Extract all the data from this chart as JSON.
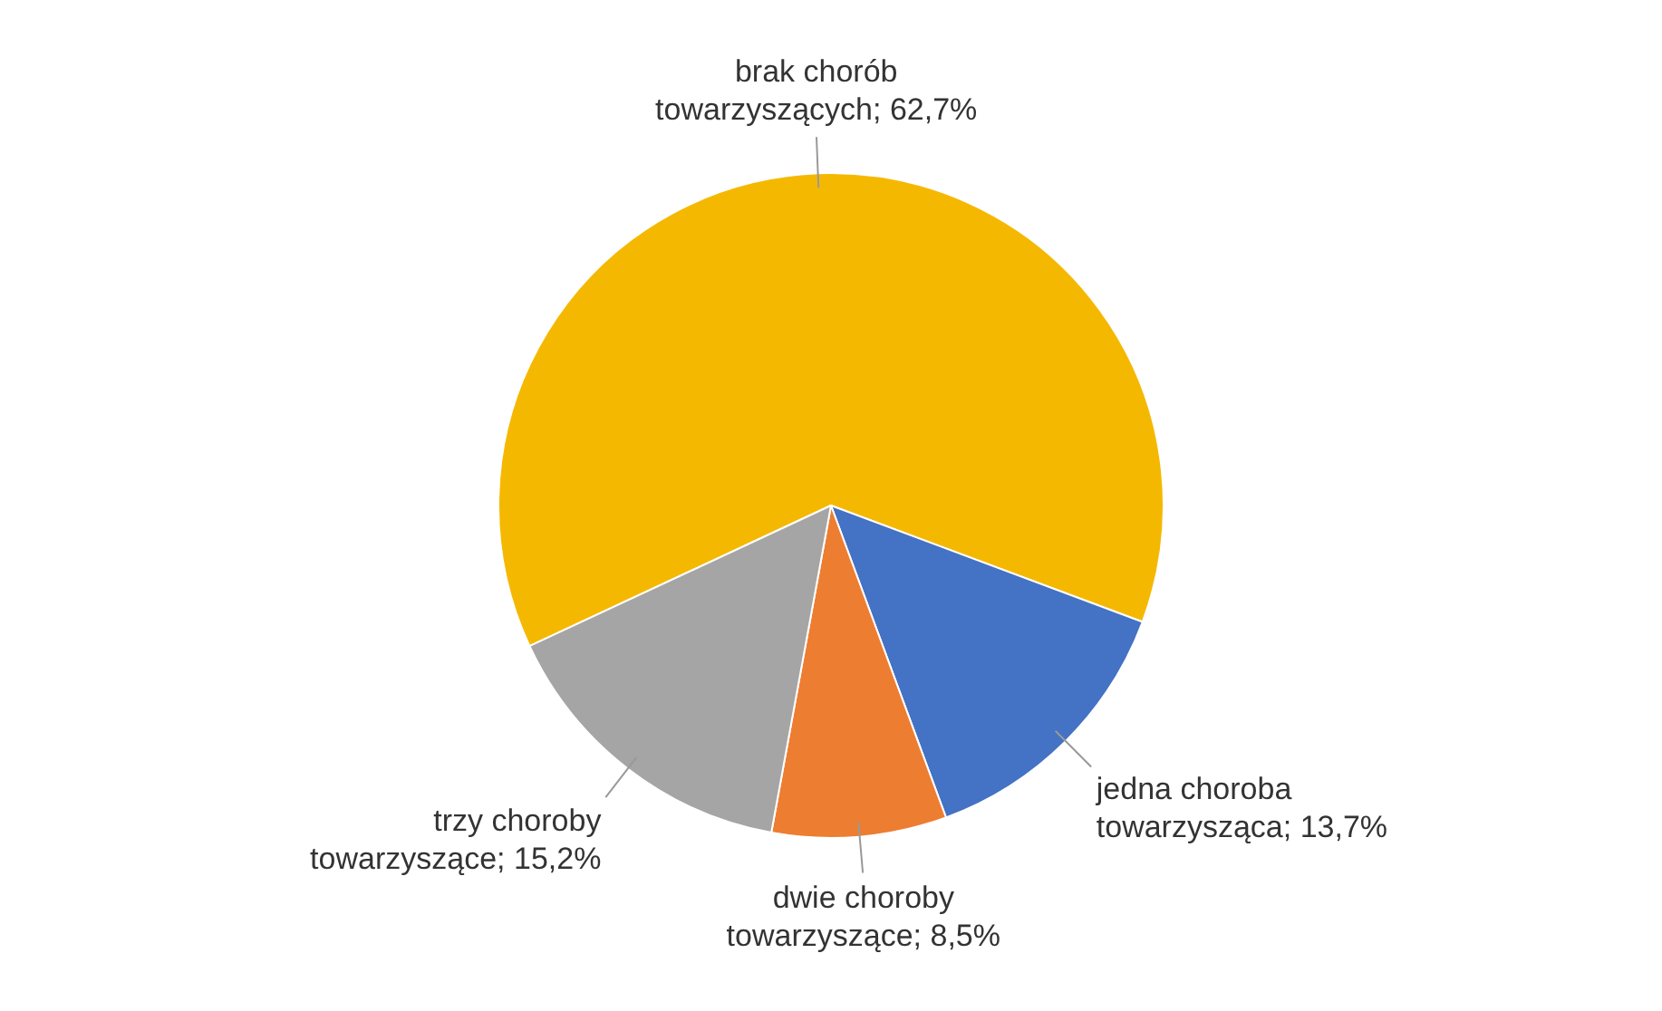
{
  "chart_data": {
    "type": "pie",
    "categories": [
      "brak chorób towarzyszących",
      "jedna choroba towarzysząca",
      "dwie choroby towarzyszące",
      "trzy choroby towarzyszące"
    ],
    "values": [
      62.7,
      13.7,
      8.5,
      15.2
    ],
    "value_labels": [
      "62,7%",
      "13,7%",
      "8,5%",
      "15,2%"
    ],
    "colors": [
      "#f5b800",
      "#4472c4",
      "#ed7d31",
      "#a5a5a5"
    ],
    "legend": false
  }
}
